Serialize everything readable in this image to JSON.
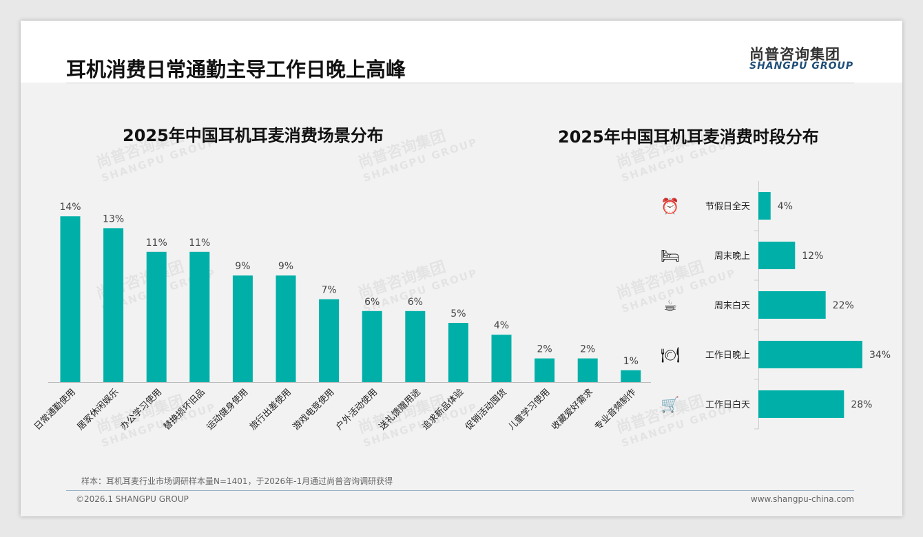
{
  "header": {
    "title": "耳机消费日常通勤主导工作日晚上高峰",
    "logo_cn": "尚普咨询集团",
    "logo_en": "SHANGPU GROUP"
  },
  "watermark": {
    "cn": "尚普咨询集团",
    "en": "SHANGPU GROUP"
  },
  "chart_data": [
    {
      "type": "bar",
      "title": "2025年中国耳机耳麦消费场景分布",
      "categories": [
        "日常通勤使用",
        "居家休闲娱乐",
        "办公学习使用",
        "替换损坏旧品",
        "运动健身使用",
        "旅行出差使用",
        "游戏电竞使用",
        "户外活动使用",
        "送礼馈赠用途",
        "追求新品体验",
        "促销活动囤货",
        "儿童学习使用",
        "收藏爱好需求",
        "专业音频制作"
      ],
      "values": [
        14,
        13,
        11,
        11,
        9,
        9,
        7,
        6,
        6,
        5,
        4,
        2,
        2,
        1
      ],
      "labels": [
        "14%",
        "13%",
        "11%",
        "11%",
        "9%",
        "9%",
        "7%",
        "6%",
        "6%",
        "5%",
        "4%",
        "2%",
        "2%",
        "1%"
      ],
      "color": "#00b0a8",
      "ylim": [
        0,
        14
      ]
    },
    {
      "type": "bar",
      "orientation": "horizontal",
      "title": "2025年中国耳机耳麦消费时段分布",
      "categories": [
        "节假日全天",
        "周末晚上",
        "周末白天",
        "工作日晚上",
        "工作日白天"
      ],
      "icons": [
        "alarm-clock-icon",
        "bed-icon",
        "coffee-cup-icon",
        "dining-icon",
        "shopping-cart-icon"
      ],
      "values": [
        4,
        12,
        22,
        34,
        28
      ],
      "labels": [
        "4%",
        "12%",
        "22%",
        "34%",
        "28%"
      ],
      "color": "#00b0a8",
      "xlim": [
        0,
        34
      ]
    }
  ],
  "footer": {
    "note": "样本：耳机耳麦行业市场调研样本量N=1401，于2026年-1月通过尚普咨询调研获得",
    "copyright": "©2026.1 SHANGPU GROUP",
    "website": "www.shangpu-china.com"
  }
}
